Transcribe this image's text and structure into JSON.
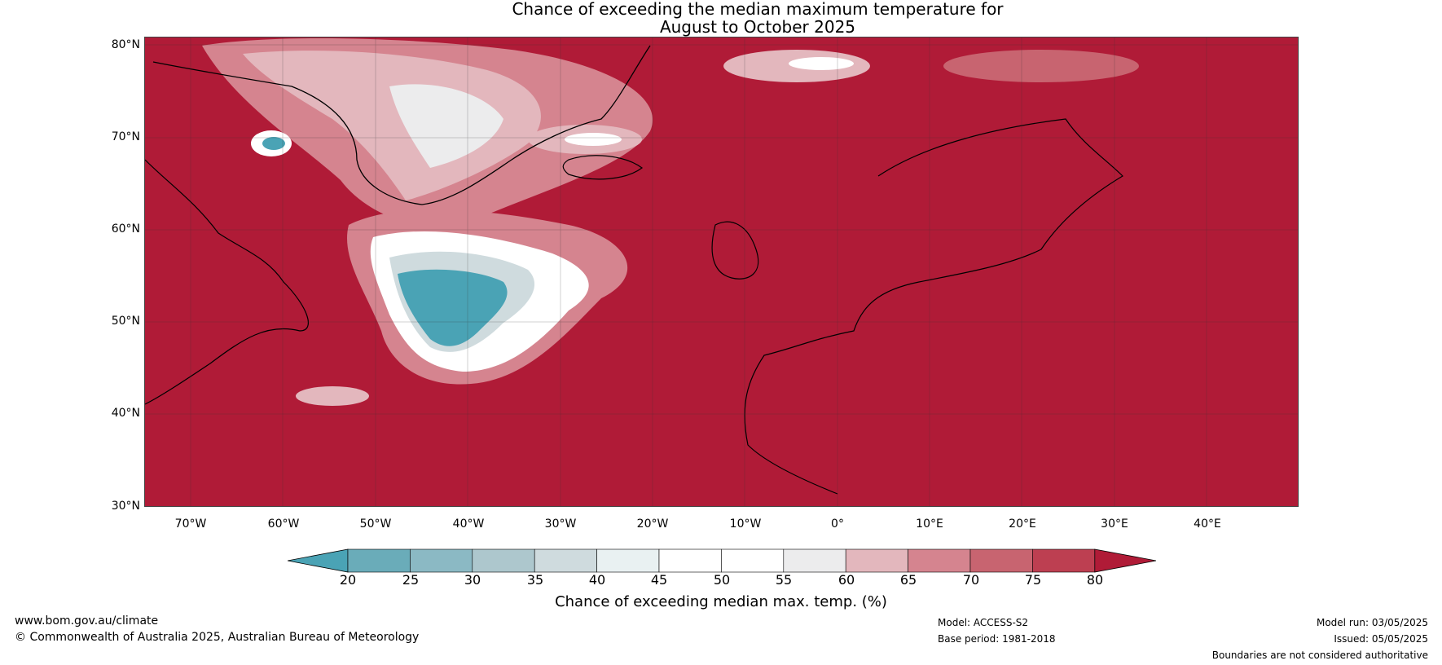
{
  "title": {
    "line1": "Chance of exceeding the median maximum temperature for",
    "line2": "August to October 2025"
  },
  "map": {
    "lat_labels": [
      "80°N",
      "70°N",
      "60°N",
      "50°N",
      "40°N",
      "30°N"
    ],
    "lon_labels": [
      "70°W",
      "60°W",
      "50°W",
      "40°W",
      "30°W",
      "20°W",
      "10°W",
      "0°",
      "10°E",
      "20°E",
      "30°E",
      "40°E"
    ],
    "region": "North Atlantic and Europe",
    "extent": {
      "lon_min": -75,
      "lon_max": 50,
      "lat_min": 30,
      "lat_max": 81
    },
    "colors": {
      "dominant_high": "#b01b37",
      "low": "#4aa3b5",
      "neutral": "#ffffff",
      "coast": "#000000",
      "borders": "#777777"
    }
  },
  "colorbar": {
    "label": "Chance of exceeding median max. temp. (%)",
    "ticks": [
      "20",
      "25",
      "30",
      "35",
      "40",
      "45",
      "50",
      "55",
      "60",
      "65",
      "70",
      "75",
      "80"
    ],
    "colors": [
      "#4aa3b5",
      "#6aacb9",
      "#8bb9c4",
      "#adc7cd",
      "#cfdbde",
      "#e9f1f2",
      "#ffffff",
      "#ffffff",
      "#ececed",
      "#e3b7bd",
      "#d5848f",
      "#c86470",
      "#bd3f51",
      "#b01b37"
    ]
  },
  "footer": {
    "website": "www.bom.gov.au/climate",
    "copyright": "© Commonwealth of Australia 2025, Australian Bureau of Meteorology",
    "model": "Model: ACCESS-S2",
    "base_period": "Base period: 1981-2018",
    "model_run": "Model run: 03/05/2025",
    "issued": "Issued: 05/05/2025",
    "disclaimer": "Boundaries are not considered authoritative"
  }
}
